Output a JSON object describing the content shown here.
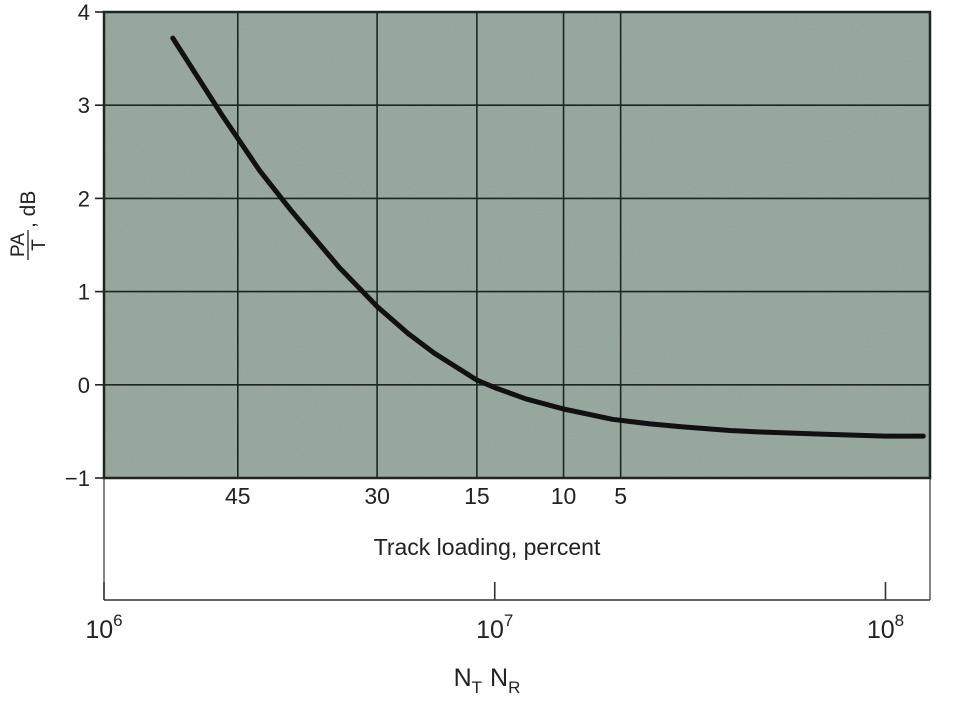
{
  "chart_data": {
    "type": "line",
    "ylabel": {
      "numerator": "PA",
      "denominator": "T",
      "unit": ", dB"
    },
    "ylim": [
      -1,
      4
    ],
    "y_ticks": [
      "−1",
      "0",
      "1",
      "2",
      "3",
      "4"
    ],
    "xlim": [
      1000000,
      130000000
    ],
    "x_scale": "log",
    "track_loading": {
      "label": "Track loading, percent",
      "ticks": [
        {
          "label": "45",
          "x": 2200000
        },
        {
          "label": "30",
          "x": 5000000
        },
        {
          "label": "15",
          "x": 9000000
        },
        {
          "label": "10",
          "x": 15000000
        },
        {
          "label": "5",
          "x": 21000000
        }
      ]
    },
    "x_axis": {
      "label": {
        "n1": "N",
        "s1": "T",
        "n2": "N",
        "s2": "R"
      },
      "ticks": [
        {
          "base": "10",
          "exp": "6",
          "x": 1000000
        },
        {
          "base": "10",
          "exp": "7",
          "x": 10000000
        },
        {
          "base": "10",
          "exp": "8",
          "x": 100000000
        }
      ]
    },
    "grid": true,
    "grid_x": [
      2200000,
      5000000,
      9000000,
      15000000,
      21000000
    ],
    "colors": {
      "plot_background": "#9eafa4",
      "gridline": "#1e2622",
      "curve": "#111111"
    },
    "series": [
      {
        "x": [
          1500000,
          2000000,
          2500000,
          3000000,
          4000000,
          5000000,
          6000000,
          7000000,
          9000000,
          10000000,
          12000000,
          15000000,
          20000000,
          25000000,
          30000000,
          40000000,
          50000000,
          70000000,
          100000000,
          125000000
        ],
        "y": [
          3.72,
          2.9,
          2.3,
          1.88,
          1.26,
          0.84,
          0.55,
          0.34,
          0.05,
          -0.03,
          -0.15,
          -0.26,
          -0.37,
          -0.42,
          -0.45,
          -0.49,
          -0.51,
          -0.53,
          -0.55,
          -0.55
        ]
      }
    ]
  }
}
